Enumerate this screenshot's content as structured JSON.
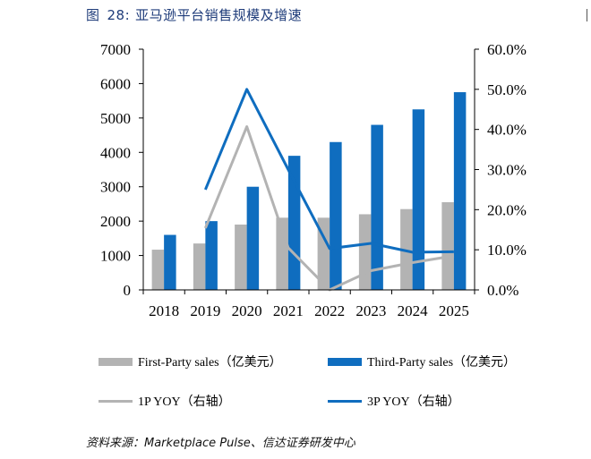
{
  "figure": {
    "label": "图",
    "number": "28:",
    "title": "亚马逊平台销售规模及增速",
    "source": "资料来源：Marketplace Pulse、信达证券研发中心"
  },
  "chart_data": {
    "type": "bar",
    "categories": [
      "2018",
      "2019",
      "2020",
      "2021",
      "2022",
      "2023",
      "2024",
      "2025"
    ],
    "series": [
      {
        "name": "First-Party sales（亿美元）",
        "type": "bar",
        "axis": "left",
        "color": "#b3b3b3",
        "values": [
          1170,
          1350,
          1900,
          2100,
          2100,
          2200,
          2350,
          2550
        ]
      },
      {
        "name": "Third-Party sales（亿美元）",
        "type": "bar",
        "axis": "left",
        "color": "#0f6dbf",
        "values": [
          1600,
          2000,
          3000,
          3900,
          4300,
          4800,
          5250,
          5750
        ]
      },
      {
        "name": "1P YOY（右轴）",
        "type": "line",
        "axis": "right",
        "color": "#b3b3b3",
        "values": [
          null,
          15.4,
          40.7,
          10.5,
          0.0,
          4.8,
          6.8,
          8.5
        ]
      },
      {
        "name": "3P YOY（右轴）",
        "type": "line",
        "axis": "right",
        "color": "#0f6dbf",
        "values": [
          null,
          25.0,
          50.0,
          30.0,
          10.3,
          11.6,
          9.4,
          9.5
        ]
      }
    ],
    "y_left": {
      "min": 0,
      "max": 7000,
      "ticks": [
        "0",
        "1000",
        "2000",
        "3000",
        "4000",
        "5000",
        "6000",
        "7000"
      ]
    },
    "y_right": {
      "min": 0,
      "max": 60,
      "ticks": [
        "0.0%",
        "10.0%",
        "20.0%",
        "30.0%",
        "40.0%",
        "50.0%",
        "60.0%"
      ]
    },
    "grid": false,
    "legend_position": "bottom"
  }
}
